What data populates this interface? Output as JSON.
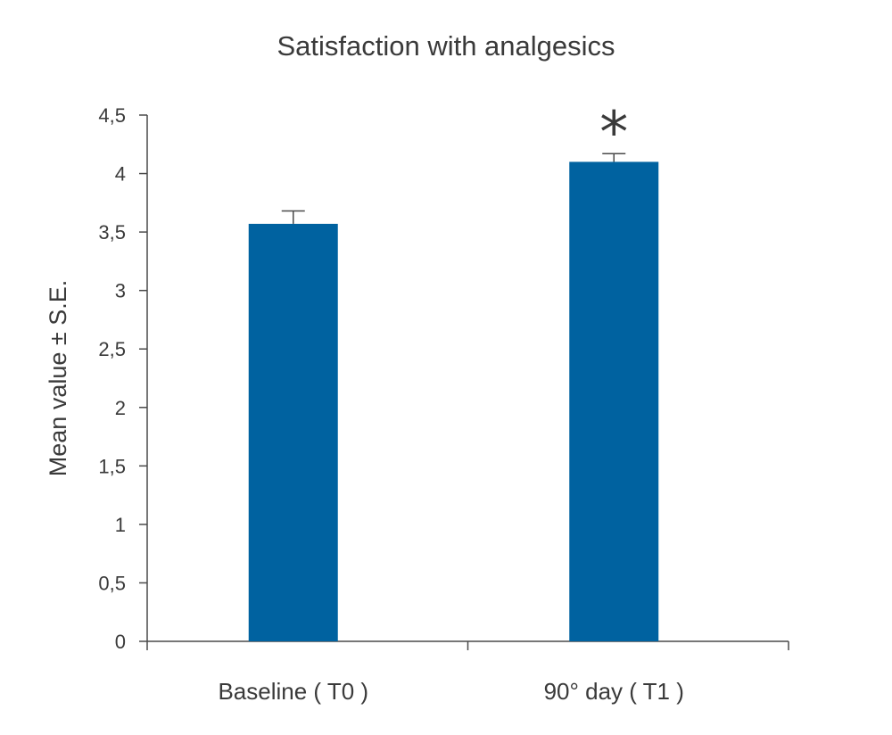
{
  "chart_data": {
    "type": "bar",
    "title": "Satisfaction with analgesics",
    "ylabel": "Mean value ± S.E.",
    "xlabel": "",
    "categories": [
      "Baseline ( T0 )",
      "90° day ( T1 )"
    ],
    "values": [
      3.57,
      4.1
    ],
    "errors": [
      0.11,
      0.07
    ],
    "significance": [
      "",
      "*"
    ],
    "ylim": [
      0,
      4.5
    ],
    "yticks": [
      0,
      0.5,
      1,
      1.5,
      2,
      2.5,
      3,
      3.5,
      4,
      4.5
    ],
    "ytick_labels": [
      "0",
      "0,5",
      "1",
      "1,5",
      "2",
      "2,5",
      "3",
      "3,5",
      "4",
      "4,5"
    ],
    "bar_color": "#0062a0",
    "grid": false,
    "legend": "none"
  }
}
